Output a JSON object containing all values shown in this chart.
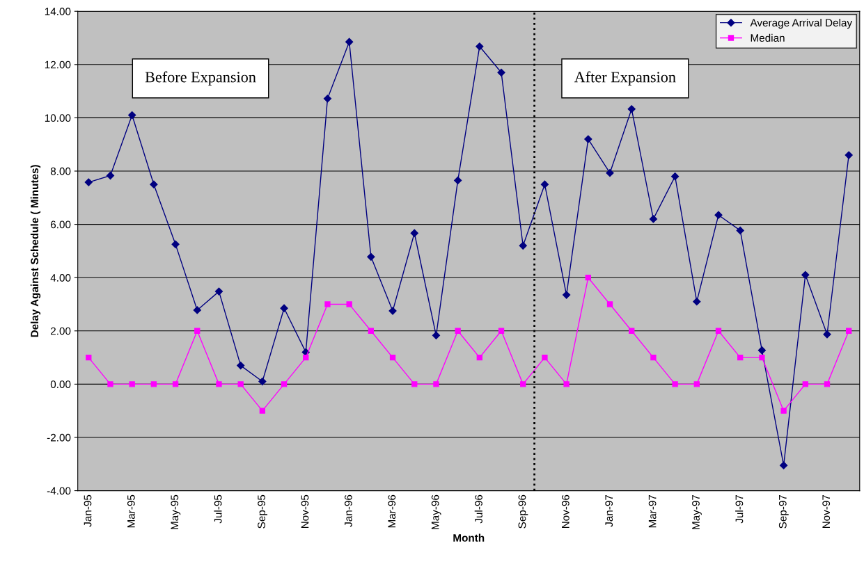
{
  "chart_data": {
    "type": "line",
    "xlabel": "Month",
    "ylabel": "Delay Against Schedule ( Minutes)",
    "categories": [
      "Jan-95",
      null,
      "Mar-95",
      null,
      "May-95",
      null,
      "Jul-95",
      null,
      "Sep-95",
      null,
      "Nov-95",
      null,
      "Jan-96",
      null,
      "Mar-96",
      null,
      "May-96",
      null,
      "Jul-96",
      null,
      "Sep-96",
      null,
      "Nov-96",
      null,
      "Jan-97",
      null,
      "Mar-97",
      null,
      "May-97",
      null,
      "Jul-97",
      null,
      "Sep-97",
      null,
      "Nov-97",
      null
    ],
    "series": [
      {
        "name": "Average Arrival Delay",
        "color": "#000080",
        "marker": "diamond",
        "values": [
          7.58,
          7.83,
          10.1,
          7.5,
          5.25,
          2.78,
          3.48,
          0.7,
          0.1,
          2.85,
          1.2,
          10.72,
          12.85,
          4.78,
          2.75,
          5.67,
          1.83,
          7.65,
          12.68,
          11.7,
          5.2,
          7.5,
          3.35,
          9.2,
          7.93,
          10.33,
          6.2,
          7.8,
          3.1,
          6.35,
          5.77,
          1.27,
          -3.05,
          4.1,
          1.87,
          8.6
        ]
      },
      {
        "name": "Median",
        "color": "#ff00ff",
        "marker": "square",
        "values": [
          1,
          0,
          0,
          0,
          0,
          2,
          0,
          0,
          -1,
          0,
          1,
          3,
          3,
          2,
          1,
          0,
          0,
          2,
          1,
          2,
          0,
          1,
          0,
          4,
          3,
          2,
          1,
          0,
          0,
          2,
          1,
          1,
          -1,
          0,
          0,
          2
        ]
      }
    ],
    "ylim": [
      -4,
      14
    ],
    "yticks": [
      {
        "value": -4,
        "label": "-4.00"
      },
      {
        "value": -2,
        "label": "-2.00"
      },
      {
        "value": 0,
        "label": "0.00"
      },
      {
        "value": 2,
        "label": "2.00"
      },
      {
        "value": 4,
        "label": "4.00"
      },
      {
        "value": 6,
        "label": "6.00"
      },
      {
        "value": 8,
        "label": "8.00"
      },
      {
        "value": 10,
        "label": "10.00"
      },
      {
        "value": 12,
        "label": "12.00"
      },
      {
        "value": 14,
        "label": "14.00"
      }
    ],
    "grid": "y",
    "legend": "top right",
    "line_style": "solid",
    "annotations": [
      "Before Expansion",
      "After Expansion"
    ]
  }
}
